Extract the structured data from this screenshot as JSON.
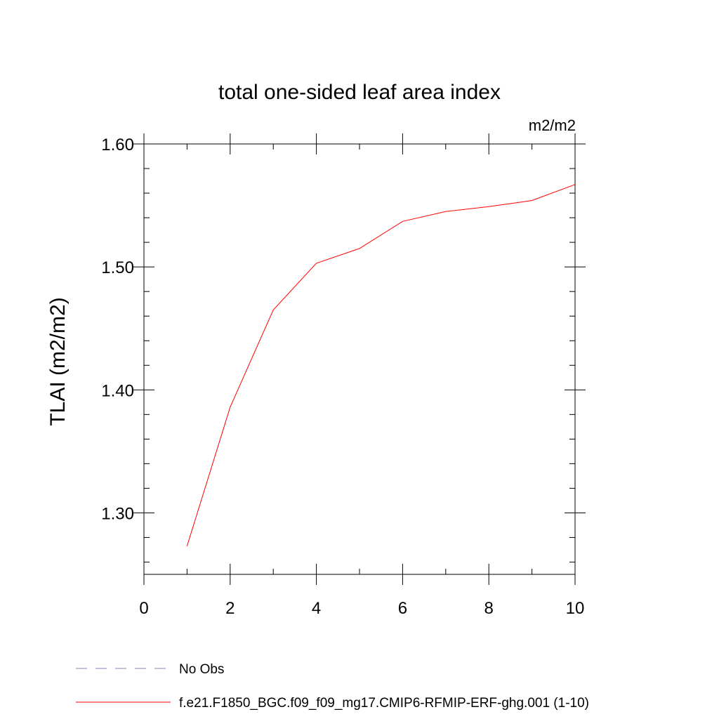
{
  "chart_data": {
    "type": "line",
    "title": "total one-sided leaf area index",
    "units_label": "m2/m2",
    "ylabel": "TLAI  (m2/m2)",
    "xlabel": "",
    "xlim": [
      0,
      10
    ],
    "ylim": [
      1.25,
      1.6
    ],
    "x_ticks": [
      0,
      2,
      4,
      6,
      8,
      10
    ],
    "x_tick_labels": [
      "0",
      "2",
      "4",
      "6",
      "8",
      "10"
    ],
    "y_ticks": [
      1.3,
      1.4,
      1.5,
      1.6
    ],
    "y_tick_labels": [
      "1.30",
      "1.40",
      "1.50",
      "1.60"
    ],
    "y_minor_step": 0.02,
    "x_minor_step": 1,
    "grid": false,
    "legend_position": "bottom",
    "series": [
      {
        "name": "f.e21.F1850_BGC.f09_f09_mg17.CMIP6-RFMIP-ERF-ghg.001 (1-10)",
        "color": "#ff0000",
        "x": [
          1,
          2,
          3,
          4,
          5,
          6,
          7,
          8,
          9,
          10
        ],
        "values": [
          1.273,
          1.386,
          1.465,
          1.503,
          1.515,
          1.537,
          1.545,
          1.549,
          1.554,
          1.567
        ]
      }
    ],
    "legend": [
      {
        "label": "No Obs",
        "color": "#8080c0",
        "style": "dashed"
      },
      {
        "label": "f.e21.F1850_BGC.f09_f09_mg17.CMIP6-RFMIP-ERF-ghg.001 (1-10)",
        "color": "#ff0000",
        "style": "solid"
      }
    ]
  }
}
